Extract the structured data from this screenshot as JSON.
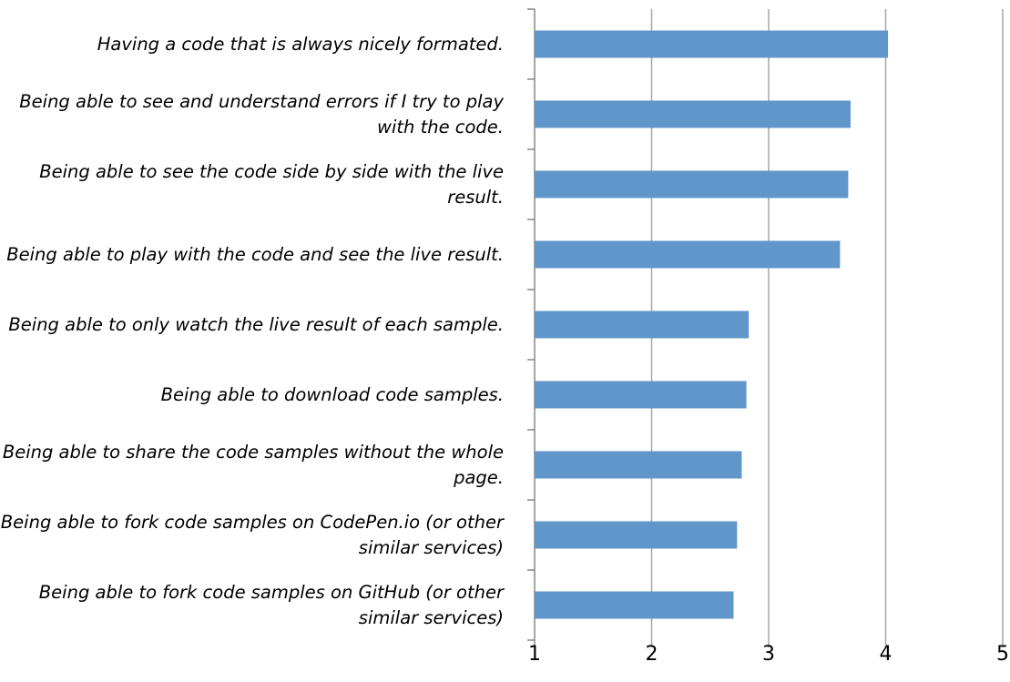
{
  "chart_data": {
    "type": "barh",
    "categories": [
      "Having a code that is always nicely formated.",
      "Being able to see and understand errors if I try to play with the code.",
      "Being able to see the code side by side with the live result.",
      "Being able to play with the code and see the live result.",
      "Being able to only watch the live result of each sample.",
      "Being able to download code samples.",
      "Being able to share the code samples without the whole page.",
      "Being able to fork code samples on CodePen.io (or other similar services)",
      "Being able to fork code samples on GitHub (or other similar services)"
    ],
    "values": [
      4.02,
      3.7,
      3.68,
      3.61,
      2.83,
      2.81,
      2.77,
      2.73,
      2.7
    ],
    "color": "#6096ca",
    "xlim": [
      1,
      5
    ],
    "xticks": [
      1,
      2,
      3,
      4,
      5
    ],
    "grid": true
  }
}
